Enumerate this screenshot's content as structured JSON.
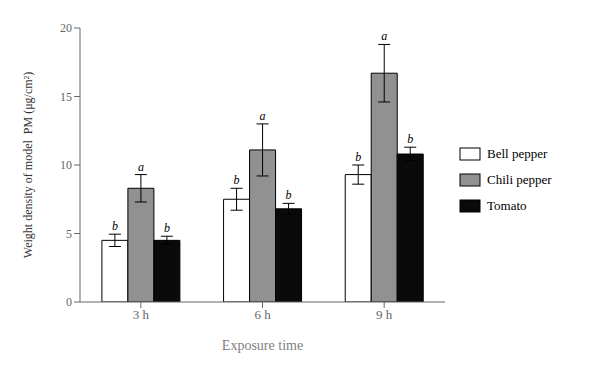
{
  "chart_data": {
    "type": "bar",
    "xlabel": "Exposure time",
    "ylabel": "Weight density of model  PM (μg/cm²)",
    "categories": [
      "3 h",
      "6 h",
      "9 h"
    ],
    "series": [
      {
        "name": "Bell pepper",
        "color": "#ffffff",
        "values": [
          4.5,
          7.5,
          9.3
        ],
        "errors": [
          0.45,
          0.8,
          0.7
        ],
        "letters": [
          "b",
          "b",
          "b"
        ]
      },
      {
        "name": "Chili pepper",
        "color": "#919191",
        "values": [
          8.3,
          11.1,
          16.7
        ],
        "errors": [
          1.0,
          1.9,
          2.1
        ],
        "letters": [
          "a",
          "a",
          "a"
        ]
      },
      {
        "name": "Tomato",
        "color": "#0a0a0a",
        "values": [
          4.5,
          6.8,
          10.8
        ],
        "errors": [
          0.3,
          0.4,
          0.5
        ],
        "letters": [
          "b",
          "b",
          "b"
        ]
      }
    ],
    "ylim": [
      0,
      20
    ],
    "yticks": [
      0,
      5,
      10,
      15,
      20
    ],
    "grid": false,
    "legend": "right"
  }
}
